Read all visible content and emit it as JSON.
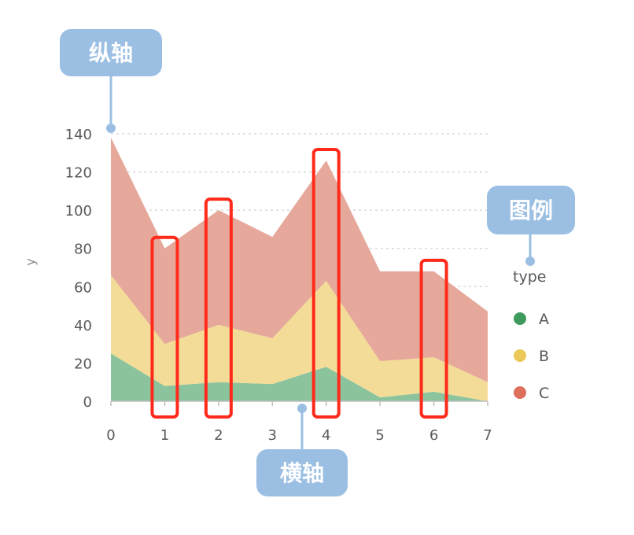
{
  "chart_data": {
    "type": "area",
    "stacked": true,
    "x": [
      0,
      1,
      2,
      3,
      4,
      5,
      6,
      7
    ],
    "series": [
      {
        "name": "A",
        "color": "#8bc39d",
        "marker_color": "#3f9a5e",
        "values": [
          25,
          8,
          10,
          9,
          18,
          2,
          5,
          0
        ]
      },
      {
        "name": "B",
        "color": "#f3dc97",
        "marker_color": "#edc95a",
        "values": [
          41,
          22,
          30,
          24,
          45,
          19,
          18,
          10
        ]
      },
      {
        "name": "C",
        "color": "#e5a89a",
        "marker_color": "#dd6f5c",
        "values": [
          72,
          50,
          60,
          53,
          63,
          47,
          45,
          37
        ]
      }
    ],
    "xlabel": "",
    "ylabel": "y",
    "yticks": [
      0,
      20,
      40,
      60,
      80,
      100,
      120,
      140
    ],
    "xticks": [
      0,
      1,
      2,
      3,
      4,
      5,
      6,
      7
    ],
    "ylim": [
      0,
      140
    ],
    "xlim": [
      0,
      7
    ],
    "grid": true,
    "legend": {
      "title": "type",
      "placement": "right"
    },
    "highlighted_x": [
      1,
      2,
      4,
      6
    ]
  },
  "annotations": {
    "y_axis": "纵轴",
    "x_axis": "横轴",
    "legend": "图例"
  },
  "colors": {
    "callout": "#9bbfe3",
    "highlight": "#ff2a1a",
    "grid": "#d9d9d9"
  }
}
